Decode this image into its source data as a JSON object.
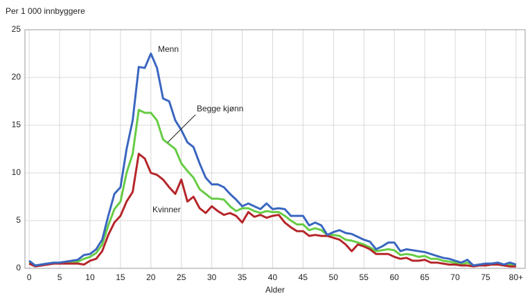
{
  "chart_data": {
    "type": "line",
    "ylabel": "Per 1 000 innbyggere",
    "xlabel": "Alder",
    "x": [
      0,
      1,
      2,
      3,
      4,
      5,
      6,
      7,
      8,
      9,
      10,
      11,
      12,
      13,
      14,
      15,
      16,
      17,
      18,
      19,
      20,
      21,
      22,
      23,
      24,
      25,
      26,
      27,
      28,
      29,
      30,
      31,
      32,
      33,
      34,
      35,
      36,
      37,
      38,
      39,
      40,
      41,
      42,
      43,
      44,
      45,
      46,
      47,
      48,
      49,
      50,
      51,
      52,
      53,
      54,
      55,
      56,
      57,
      58,
      59,
      60,
      61,
      62,
      63,
      64,
      65,
      66,
      67,
      68,
      69,
      70,
      71,
      72,
      73,
      74,
      75,
      76,
      77,
      78,
      79,
      80
    ],
    "series": [
      {
        "name": "Menn",
        "color": "#3a66c0",
        "values": [
          0.8,
          0.3,
          0.4,
          0.5,
          0.6,
          0.6,
          0.7,
          0.8,
          0.9,
          1.4,
          1.5,
          2.0,
          3.0,
          5.5,
          7.8,
          8.5,
          12.5,
          15.5,
          21.1,
          21.0,
          22.5,
          21.0,
          17.8,
          17.5,
          15.5,
          14.5,
          13.2,
          12.7,
          11.0,
          9.5,
          8.8,
          8.8,
          8.5,
          7.8,
          7.2,
          6.5,
          6.8,
          6.5,
          6.2,
          6.8,
          6.2,
          6.3,
          6.2,
          5.5,
          5.5,
          5.5,
          4.5,
          4.8,
          4.5,
          3.5,
          3.8,
          4.0,
          3.7,
          3.6,
          3.3,
          3.0,
          2.8,
          2.0,
          2.3,
          2.7,
          2.7,
          1.8,
          2.0,
          1.9,
          1.8,
          1.7,
          1.5,
          1.3,
          1.1,
          1.0,
          0.8,
          0.6,
          0.9,
          0.3,
          0.4,
          0.5,
          0.5,
          0.6,
          0.4,
          0.6,
          0.4
        ]
      },
      {
        "name": "Begge kjønn",
        "color": "#66cc44",
        "values": [
          0.7,
          0.3,
          0.4,
          0.5,
          0.5,
          0.6,
          0.6,
          0.7,
          0.7,
          1.0,
          1.2,
          1.6,
          2.5,
          4.5,
          6.2,
          7.0,
          10.0,
          12.0,
          16.6,
          16.3,
          16.3,
          15.5,
          13.5,
          13.0,
          12.5,
          11.0,
          10.2,
          9.5,
          8.3,
          7.8,
          7.3,
          7.3,
          7.2,
          6.5,
          6.0,
          6.3,
          6.3,
          6.0,
          5.8,
          6.0,
          5.9,
          5.9,
          5.5,
          5.0,
          4.6,
          4.6,
          4.0,
          4.2,
          4.0,
          3.5,
          3.5,
          3.4,
          3.0,
          2.9,
          2.7,
          2.5,
          2.2,
          1.8,
          1.9,
          2.0,
          1.9,
          1.4,
          1.5,
          1.4,
          1.2,
          1.3,
          1.0,
          1.0,
          0.8,
          0.7,
          0.6,
          0.4,
          0.6,
          0.3,
          0.4,
          0.4,
          0.5,
          0.5,
          0.4,
          0.4,
          0.3
        ]
      },
      {
        "name": "Kvinner",
        "color": "#b5262a",
        "values": [
          0.5,
          0.2,
          0.3,
          0.4,
          0.5,
          0.5,
          0.5,
          0.5,
          0.5,
          0.4,
          0.8,
          1.0,
          1.8,
          3.5,
          4.8,
          5.5,
          7.0,
          8.0,
          12.0,
          11.5,
          10.0,
          9.8,
          9.3,
          8.5,
          7.8,
          9.3,
          7.0,
          7.5,
          6.3,
          5.8,
          6.5,
          6.0,
          5.6,
          5.8,
          5.5,
          4.8,
          5.9,
          5.4,
          5.6,
          5.3,
          5.5,
          5.6,
          4.8,
          4.3,
          3.9,
          3.9,
          3.4,
          3.5,
          3.4,
          3.4,
          3.2,
          3.0,
          2.5,
          1.8,
          2.5,
          2.3,
          2.0,
          1.5,
          1.5,
          1.5,
          1.2,
          1.0,
          1.1,
          0.8,
          0.8,
          0.9,
          0.6,
          0.6,
          0.5,
          0.4,
          0.4,
          0.3,
          0.3,
          0.2,
          0.3,
          0.3,
          0.4,
          0.4,
          0.3,
          0.2,
          0.2
        ]
      }
    ],
    "xlim": [
      -0.7,
      81.5
    ],
    "ylim": [
      0,
      25
    ],
    "xticks": [
      0,
      5,
      10,
      15,
      20,
      25,
      30,
      35,
      40,
      45,
      50,
      55,
      60,
      65,
      70,
      75,
      {
        "value": 80,
        "label": "80+"
      }
    ],
    "yticks": [
      0,
      5,
      10,
      15,
      20,
      25
    ],
    "grid": true
  }
}
